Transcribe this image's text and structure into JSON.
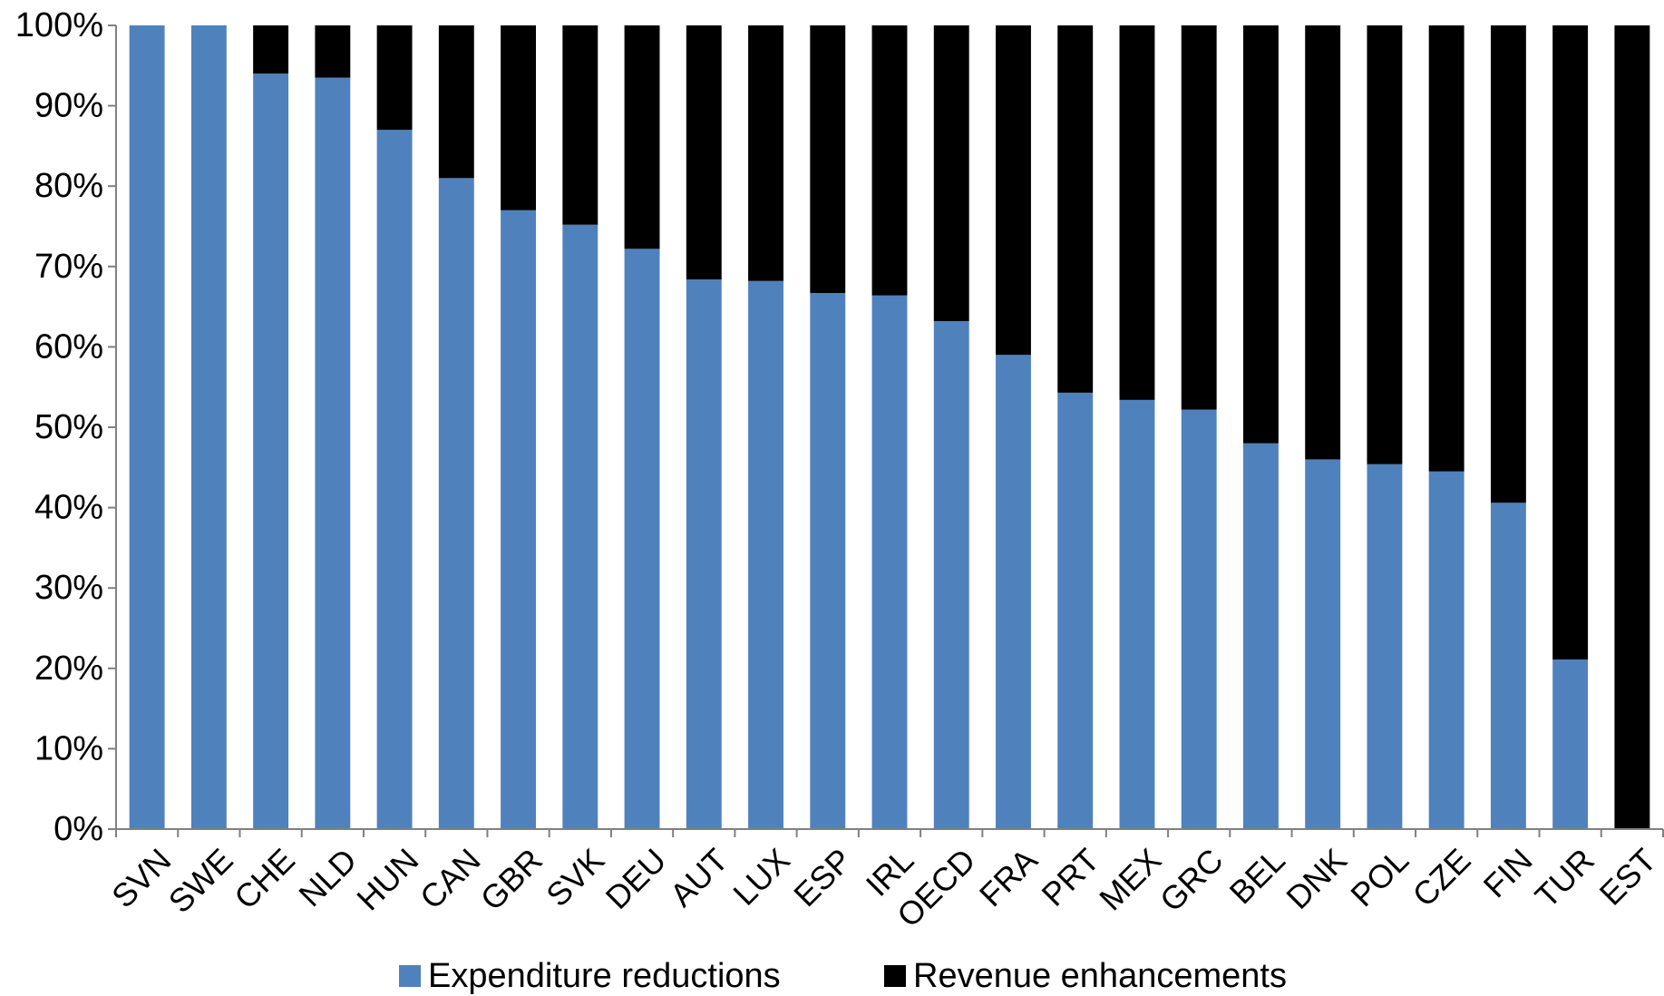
{
  "chart_data": {
    "type": "bar",
    "stacked": true,
    "categories": [
      "SVN",
      "SWE",
      "CHE",
      "NLD",
      "HUN",
      "CAN",
      "GBR",
      "SVK",
      "DEU",
      "AUT",
      "LUX",
      "ESP",
      "IRL",
      "OECD",
      "FRA",
      "PRT",
      "MEX",
      "GRC",
      "BEL",
      "DNK",
      "POL",
      "CZE",
      "FIN",
      "TUR",
      "EST"
    ],
    "series": [
      {
        "name": "Expenditure reductions",
        "color": "#4F81BD",
        "values": [
          100,
          100,
          94,
          93.5,
          87,
          81,
          77,
          75.2,
          72.2,
          68.4,
          68.2,
          66.7,
          66.4,
          63.2,
          59,
          54.3,
          53.4,
          52.2,
          48,
          46,
          45.4,
          44.5,
          40.6,
          21.1,
          0
        ]
      },
      {
        "name": "Revenue enhancements",
        "color": "#000000",
        "values": [
          0,
          0,
          6,
          6.5,
          13,
          19,
          23,
          24.8,
          27.8,
          31.6,
          31.8,
          33.3,
          33.6,
          36.8,
          41,
          45.7,
          46.6,
          47.8,
          52,
          54,
          54.6,
          55.5,
          59.4,
          78.9,
          100
        ]
      }
    ],
    "yticks": [
      "0%",
      "10%",
      "20%",
      "30%",
      "40%",
      "50%",
      "60%",
      "70%",
      "80%",
      "90%",
      "100%"
    ],
    "ylim": [
      0,
      100
    ],
    "ytick_step": 10,
    "title": "",
    "xlabel": "",
    "ylabel": "",
    "legend_position": "bottom",
    "grid": false
  }
}
